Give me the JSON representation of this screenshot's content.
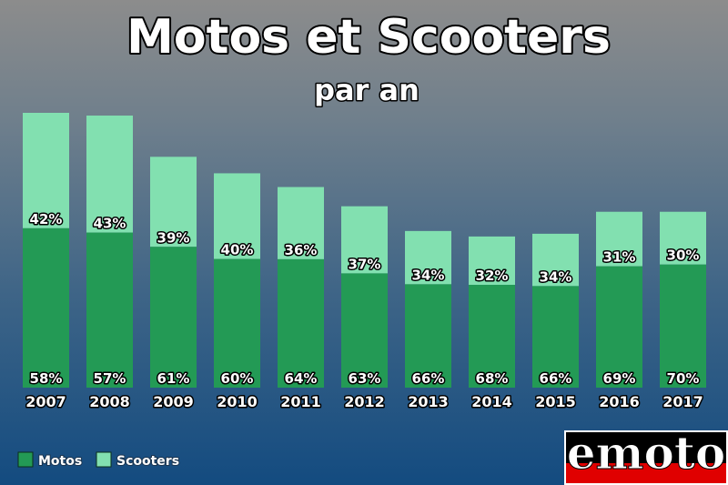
{
  "chart_data": {
    "type": "bar",
    "stacked": true,
    "title": "Motos et Scooters",
    "subtitle": "par an",
    "categories": [
      "2007",
      "2008",
      "2009",
      "2010",
      "2011",
      "2012",
      "2013",
      "2014",
      "2015",
      "2016",
      "2017"
    ],
    "totals": [
      100,
      99,
      84,
      78,
      73,
      66,
      57,
      55,
      56,
      64,
      64
    ],
    "series": [
      {
        "name": "Motos",
        "color": "#239a55",
        "percent_labels": [
          "58%",
          "57%",
          "61%",
          "60%",
          "64%",
          "63%",
          "66%",
          "68%",
          "66%",
          "69%",
          "70%"
        ]
      },
      {
        "name": "Scooters",
        "color": "#82e0b0",
        "percent_labels": [
          "42%",
          "43%",
          "39%",
          "40%",
          "36%",
          "37%",
          "34%",
          "32%",
          "34%",
          "31%",
          "30%"
        ]
      }
    ],
    "legend_position": "bottom-left",
    "grid": false
  },
  "logo": {
    "text": "emoto",
    "colors": {
      "top": "#000000",
      "bottom": "#e00000",
      "text": "#ffffff"
    }
  }
}
